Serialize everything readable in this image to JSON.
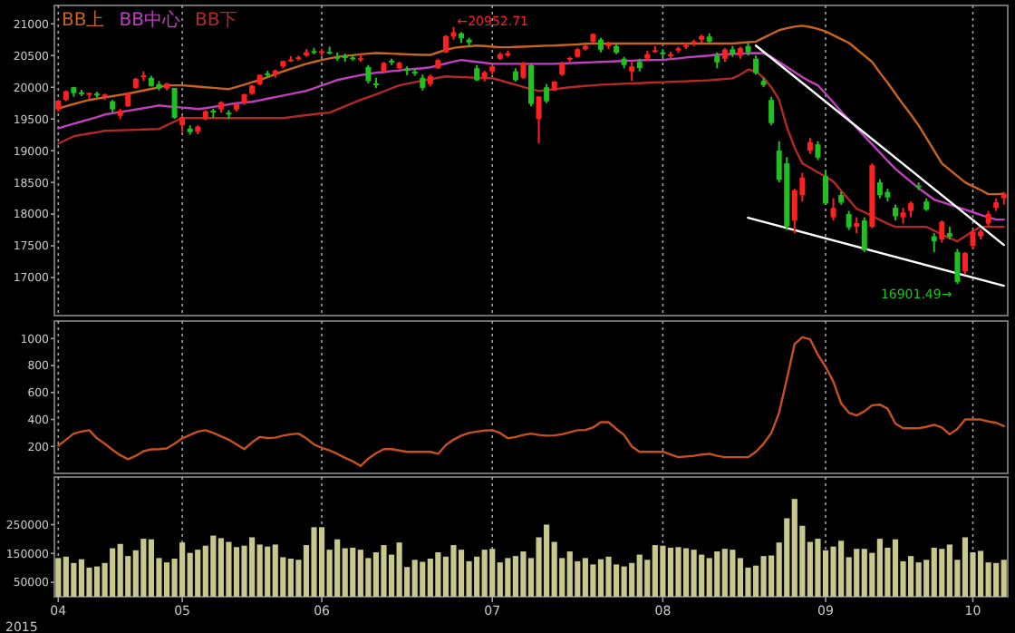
{
  "chart_data": [
    {
      "type": "candlestick",
      "categories": [
        "04",
        null,
        null,
        null,
        null,
        null,
        null,
        null,
        null,
        null,
        null,
        null,
        null,
        null,
        null,
        null,
        "05",
        null,
        null,
        null,
        null,
        null,
        null,
        null,
        null,
        null,
        null,
        null,
        null,
        null,
        null,
        null,
        null,
        null,
        "06",
        null,
        null,
        null,
        null,
        null,
        null,
        null,
        null,
        null,
        null,
        null,
        null,
        null,
        null,
        null,
        null,
        null,
        null,
        null,
        null,
        null,
        "07",
        null,
        null,
        null,
        null,
        null,
        null,
        null,
        null,
        null,
        null,
        null,
        null,
        null,
        null,
        null,
        null,
        null,
        null,
        null,
        null,
        null,
        "08",
        null,
        null,
        null,
        null,
        null,
        null,
        null,
        null,
        null,
        null,
        null,
        null,
        null,
        null,
        null,
        null,
        null,
        null,
        null,
        null,
        "09",
        null,
        null,
        null,
        null,
        null,
        null,
        null,
        null,
        null,
        null,
        null,
        null,
        null,
        null,
        null,
        null,
        null,
        null,
        "10",
        null,
        null,
        null,
        null
      ],
      "ohlc": [
        [
          19650,
          19800,
          19620,
          19790
        ],
        [
          19800,
          19950,
          19780,
          19937
        ],
        [
          20000,
          20006,
          19850,
          19907
        ],
        [
          19920,
          19960,
          19860,
          19905
        ],
        [
          19880,
          19920,
          19820,
          19908
        ],
        [
          19900,
          19930,
          19840,
          19870
        ],
        [
          19850,
          19900,
          19800,
          19885
        ],
        [
          19780,
          19800,
          19600,
          19652
        ],
        [
          19550,
          19660,
          19500,
          19634
        ],
        [
          19700,
          19910,
          19690,
          19909
        ],
        [
          19990,
          20150,
          19980,
          20133
        ],
        [
          20160,
          20250,
          20100,
          20187
        ],
        [
          20150,
          20180,
          20010,
          20020
        ],
        [
          20050,
          20100,
          19950,
          19983
        ],
        [
          19980,
          20070,
          19950,
          20058
        ],
        [
          19990,
          19990,
          19500,
          19520
        ],
        [
          19400,
          19550,
          19300,
          19531
        ],
        [
          19350,
          19400,
          19250,
          19292
        ],
        [
          19300,
          19400,
          19260,
          19379
        ],
        [
          19500,
          19640,
          19480,
          19620
        ],
        [
          19630,
          19660,
          19520,
          19624
        ],
        [
          19650,
          19780,
          19600,
          19764
        ],
        [
          19600,
          19640,
          19500,
          19570
        ],
        [
          19650,
          19760,
          19620,
          19732
        ],
        [
          19750,
          19900,
          19720,
          19890
        ],
        [
          19900,
          20040,
          19880,
          20026
        ],
        [
          20050,
          20200,
          20030,
          20196
        ],
        [
          20220,
          20260,
          20150,
          20202
        ],
        [
          20200,
          20280,
          20150,
          20264
        ],
        [
          20330,
          20420,
          20300,
          20413
        ],
        [
          20420,
          20490,
          20400,
          20437
        ],
        [
          20450,
          20500,
          20420,
          20473
        ],
        [
          20500,
          20600,
          20480,
          20551
        ],
        [
          20570,
          20620,
          20520,
          20563
        ],
        [
          20550,
          20600,
          20500,
          20569
        ],
        [
          20560,
          20640,
          20520,
          20543
        ],
        [
          20480,
          20550,
          20420,
          20473
        ],
        [
          20490,
          20530,
          20400,
          20488
        ],
        [
          20470,
          20520,
          20420,
          20460
        ],
        [
          20450,
          20520,
          20400,
          20457
        ],
        [
          20320,
          20350,
          20060,
          20096
        ],
        [
          20060,
          20150,
          19990,
          20046
        ],
        [
          20250,
          20400,
          20240,
          20382
        ],
        [
          20420,
          20450,
          20350,
          20407
        ],
        [
          20300,
          20400,
          20280,
          20387
        ],
        [
          20300,
          20330,
          20190,
          20257
        ],
        [
          20250,
          20300,
          20180,
          20219
        ],
        [
          20150,
          20200,
          19950,
          19990
        ],
        [
          20050,
          20200,
          20020,
          20174
        ],
        [
          20300,
          20450,
          20290,
          20428
        ],
        [
          20550,
          20820,
          20540,
          20809
        ],
        [
          20800,
          20952.71,
          20750,
          20868
        ],
        [
          20850,
          20870,
          20700,
          20771
        ],
        [
          20750,
          20780,
          20650,
          20706
        ],
        [
          20300,
          20350,
          20100,
          20109
        ],
        [
          20150,
          20260,
          20090,
          20235
        ],
        [
          20250,
          20350,
          20200,
          20329
        ],
        [
          20450,
          20550,
          20430,
          20522
        ],
        [
          20500,
          20580,
          20480,
          20539
        ],
        [
          20250,
          20300,
          20090,
          20112
        ],
        [
          20150,
          20400,
          20130,
          20376
        ],
        [
          20350,
          20360,
          19700,
          19737
        ],
        [
          19500,
          19860,
          19115,
          19855
        ],
        [
          20000,
          20050,
          19750,
          19779
        ],
        [
          19950,
          20100,
          19940,
          20089
        ],
        [
          20200,
          20400,
          20180,
          20385
        ],
        [
          20450,
          20480,
          20400,
          20463
        ],
        [
          20480,
          20620,
          20470,
          20600
        ],
        [
          20600,
          20680,
          20580,
          20650
        ],
        [
          20720,
          20850,
          20700,
          20841
        ],
        [
          20750,
          20780,
          20550,
          20593
        ],
        [
          20650,
          20720,
          20600,
          20683
        ],
        [
          20650,
          20680,
          20520,
          20544
        ],
        [
          20450,
          20480,
          20300,
          20350
        ],
        [
          20250,
          20400,
          20100,
          20328
        ],
        [
          20400,
          20450,
          20250,
          20302
        ],
        [
          20450,
          20580,
          20420,
          20522
        ],
        [
          20560,
          20650,
          20540,
          20585
        ],
        [
          20550,
          20600,
          20480,
          20548
        ],
        [
          20500,
          20560,
          20440,
          20520
        ],
        [
          20580,
          20640,
          20540,
          20614
        ],
        [
          20650,
          20700,
          20600,
          20664
        ],
        [
          20700,
          20750,
          20650,
          20724
        ],
        [
          20750,
          20830,
          20700,
          20808
        ],
        [
          20800,
          20850,
          20700,
          20720
        ],
        [
          20500,
          20550,
          20300,
          20392
        ],
        [
          20450,
          20620,
          20400,
          20595
        ],
        [
          20600,
          20650,
          20480,
          20519
        ],
        [
          20500,
          20640,
          20450,
          20620
        ],
        [
          20650,
          20700,
          20500,
          20554
        ],
        [
          20450,
          20500,
          20200,
          20222
        ],
        [
          20100,
          20150,
          20000,
          20033
        ],
        [
          19800,
          19850,
          19400,
          19435
        ],
        [
          19000,
          19150,
          18500,
          18540
        ],
        [
          18800,
          18900,
          17750,
          17806
        ],
        [
          17900,
          18400,
          17700,
          18376
        ],
        [
          18300,
          18650,
          18200,
          18574
        ],
        [
          19000,
          19200,
          18950,
          19136
        ],
        [
          19100,
          19150,
          18850,
          18890
        ],
        [
          18600,
          18700,
          18150,
          18165
        ],
        [
          17950,
          18250,
          17900,
          18095
        ],
        [
          18300,
          18350,
          18150,
          18182
        ],
        [
          18000,
          18050,
          17750,
          17792
        ],
        [
          17800,
          17950,
          17700,
          17860
        ],
        [
          17900,
          17950,
          17400,
          17427
        ],
        [
          17800,
          18800,
          17780,
          18770
        ],
        [
          18500,
          18550,
          18250,
          18299
        ],
        [
          18350,
          18400,
          18200,
          18264
        ],
        [
          18100,
          18150,
          17900,
          17965
        ],
        [
          17950,
          18100,
          17850,
          18026
        ],
        [
          18050,
          18200,
          17950,
          18171
        ],
        [
          18450,
          18500,
          18380,
          18432
        ],
        [
          18200,
          18250,
          18050,
          18070
        ],
        [
          17650,
          17700,
          17400,
          17571
        ],
        [
          17600,
          17900,
          17550,
          17880
        ],
        [
          17700,
          17800,
          17600,
          17645
        ],
        [
          17400,
          17450,
          16901.49,
          16930
        ],
        [
          17100,
          17400,
          17050,
          17388
        ],
        [
          17500,
          17750,
          17450,
          17722
        ],
        [
          17650,
          17760,
          17600,
          17725
        ],
        [
          17850,
          18050,
          17800,
          18005
        ],
        [
          18100,
          18250,
          18050,
          18186
        ],
        [
          18250,
          18350,
          18150,
          18322
        ]
      ],
      "colors": [
        "#ff2020",
        "#ff2020",
        "#20c020",
        "#20c020",
        "#ff2020",
        "#20c020",
        "#ff2020",
        "#20c020",
        "#ff2020",
        "#ff2020",
        "#ff2020",
        "#ff2020",
        "#20c020",
        "#20c020",
        "#ff2020",
        "#20c020",
        "#ff2020",
        "#20c020",
        "#ff2020",
        "#ff2020",
        "#20c020",
        "#ff2020",
        "#20c020",
        "#ff2020",
        "#ff2020",
        "#ff2020",
        "#ff2020",
        "#20c020",
        "#ff2020",
        "#ff2020",
        "#ff2020",
        "#ff2020",
        "#ff2020",
        "#20c020",
        "#ff2020",
        "#20c020",
        "#20c020",
        "#20c020",
        "#20c020",
        "#ff2020",
        "#20c020",
        "#20c020",
        "#ff2020",
        "#20c020",
        "#ff2020",
        "#20c020",
        "#20c020",
        "#20c020",
        "#ff2020",
        "#ff2020",
        "#ff2020",
        "#ff2020",
        "#20c020",
        "#20c020",
        "#20c020",
        "#ff2020",
        "#ff2020",
        "#ff2020",
        "#ff2020",
        "#20c020",
        "#ff2020",
        "#20c020",
        "#ff2020",
        "#20c020",
        "#ff2020",
        "#ff2020",
        "#ff2020",
        "#ff2020",
        "#ff2020",
        "#ff2020",
        "#20c020",
        "#ff2020",
        "#20c020",
        "#20c020",
        "#ff2020",
        "#20c020",
        "#ff2020",
        "#ff2020",
        "#20c020",
        "#ff2020",
        "#ff2020",
        "#ff2020",
        "#ff2020",
        "#ff2020",
        "#20c020",
        "#20c020",
        "#ff2020",
        "#20c020",
        "#ff2020",
        "#20c020",
        "#20c020",
        "#20c020",
        "#20c020",
        "#20c020",
        "#20c020",
        "#ff2020",
        "#ff2020",
        "#ff2020",
        "#20c020",
        "#20c020",
        "#ff2020",
        "#20c020",
        "#20c020",
        "#ff2020",
        "#20c020",
        "#ff2020",
        "#20c020",
        "#20c020",
        "#20c020",
        "#ff2020",
        "#ff2020",
        "#20c020",
        "#20c020",
        "#20c020",
        "#ff2020",
        "#20c020",
        "#20c020",
        "#ff2020",
        "#ff2020",
        "#ff2020",
        "#ff2020",
        "#ff2020",
        "#ff2020"
      ],
      "series": [
        {
          "type": "line",
          "name": "BB上",
          "color": "#c8641e",
          "values": [
            19665,
            19700,
            19735,
            19770,
            19800,
            19820,
            19840,
            19860,
            19880,
            19900,
            19925,
            19950,
            19975,
            20000,
            20030,
            20030,
            20030,
            20020,
            20010,
            20000,
            19990,
            19980,
            19970,
            20005,
            20040,
            20080,
            20114,
            20160,
            20205,
            20250,
            20290,
            20330,
            20370,
            20400,
            20430,
            20455,
            20480,
            20495,
            20505,
            20520,
            20530,
            20540,
            20535,
            20530,
            20525,
            20520,
            20515,
            20510,
            20510,
            20550,
            20590,
            20620,
            20635,
            20645,
            20657,
            20650,
            20640,
            20630,
            20630,
            20635,
            20640,
            20645,
            20650,
            20655,
            20657,
            20665,
            20670,
            20675,
            20685,
            20690,
            20690,
            20690,
            20690,
            20690,
            20690,
            20690,
            20690,
            20690,
            20690,
            20690,
            20690,
            20690,
            20690,
            20690,
            20690,
            20690,
            20690,
            20690,
            20700,
            20710,
            20720,
            20780,
            20840,
            20900,
            20930,
            20955,
            20970,
            20950,
            20920,
            20880,
            20820,
            20760,
            20700,
            20600,
            20500,
            20400,
            20230,
            20070,
            19900,
            19730,
            19570,
            19400,
            19200,
            19000,
            18800,
            18700,
            18600,
            18500,
            18440,
            18380,
            18314,
            18314,
            18320
          ]
        },
        {
          "type": "line",
          "name": "BB中心",
          "color": "#c040c0",
          "values": [
            19350,
            19390,
            19425,
            19460,
            19495,
            19530,
            19570,
            19590,
            19610,
            19630,
            19650,
            19670,
            19690,
            19714,
            19700,
            19690,
            19680,
            19670,
            19657,
            19670,
            19690,
            19710,
            19730,
            19750,
            19760,
            19771,
            19795,
            19820,
            19845,
            19870,
            19895,
            19920,
            19943,
            19985,
            20030,
            20070,
            20114,
            20140,
            20165,
            20190,
            20210,
            20230,
            20240,
            20255,
            20265,
            20280,
            20290,
            20300,
            20314,
            20345,
            20375,
            20405,
            20430,
            20415,
            20400,
            20385,
            20370,
            20370,
            20370,
            20370,
            20370,
            20370,
            20370,
            20370,
            20370,
            20375,
            20380,
            20385,
            20390,
            20395,
            20400,
            20405,
            20410,
            20415,
            20420,
            20425,
            20428,
            20430,
            20430,
            20445,
            20455,
            20470,
            20480,
            20490,
            20500,
            20514,
            20520,
            20525,
            20530,
            20535,
            20540,
            20535,
            20480,
            20400,
            20320,
            20240,
            20160,
            20090,
            20030,
            19900,
            19760,
            19620,
            19490,
            19360,
            19230,
            19100,
            18970,
            18840,
            18714,
            18610,
            18510,
            18410,
            18320,
            18230,
            18190,
            18150,
            18110,
            18070,
            18030,
            17990,
            17950,
            17914,
            17914
          ]
        },
        {
          "type": "line",
          "name": "BB下",
          "color": "#b42828",
          "values": [
            19110,
            19170,
            19228,
            19250,
            19270,
            19290,
            19314,
            19318,
            19322,
            19326,
            19330,
            19334,
            19338,
            19343,
            19400,
            19460,
            19514,
            19514,
            19514,
            19514,
            19514,
            19514,
            19514,
            19514,
            19514,
            19514,
            19514,
            19514,
            19514,
            19514,
            19530,
            19545,
            19560,
            19575,
            19590,
            19600,
            19650,
            19700,
            19750,
            19800,
            19845,
            19886,
            19935,
            19985,
            20030,
            20055,
            20080,
            20105,
            20125,
            20150,
            20171,
            20165,
            20160,
            20155,
            20150,
            20145,
            20143,
            20110,
            20075,
            20040,
            20005,
            19970,
            19943,
            19955,
            19970,
            19985,
            20000,
            20010,
            20020,
            20030,
            20040,
            20045,
            20050,
            20057,
            20060,
            20065,
            20070,
            20075,
            20080,
            20085,
            20090,
            20095,
            20100,
            20105,
            20110,
            20120,
            20130,
            20140,
            20200,
            20280,
            20250,
            20150,
            20000,
            19800,
            19371,
            19050,
            18800,
            18730,
            18660,
            18590,
            18514,
            18370,
            18230,
            18085,
            18030,
            17970,
            17910,
            17850,
            17800,
            17800,
            17800,
            17800,
            17800,
            17740,
            17680,
            17620,
            17571,
            17650,
            17730,
            17800,
            17800,
            17800,
            17800
          ]
        },
        {
          "type": "line",
          "color": "#ffffff",
          "values": [
            null,
            null,
            null,
            null,
            null,
            null,
            null,
            null,
            null,
            null,
            null,
            null,
            null,
            null,
            null,
            null,
            null,
            null,
            null,
            null,
            null,
            null,
            null,
            null,
            null,
            null,
            null,
            null,
            null,
            null,
            null,
            null,
            null,
            null,
            null,
            null,
            null,
            null,
            null,
            null,
            null,
            null,
            null,
            null,
            null,
            null,
            null,
            null,
            null,
            null,
            null,
            null,
            null,
            null,
            null,
            null,
            null,
            null,
            null,
            null,
            null,
            null,
            null,
            null,
            null,
            null,
            null,
            null,
            null,
            null,
            null,
            null,
            null,
            null,
            null,
            null,
            null,
            null,
            null,
            null,
            null,
            null,
            null,
            null,
            null,
            null,
            null,
            null,
            null,
            null,
            20657,
            null,
            null,
            null,
            null,
            null,
            null,
            null,
            null,
            null,
            null,
            null,
            null,
            null,
            null,
            null,
            null,
            null,
            null,
            null,
            null,
            null,
            null,
            null,
            null,
            null,
            null,
            null,
            null,
            null,
            null,
            null,
            17514
          ]
        },
        {
          "type": "line",
          "color": "#ffffff",
          "values": [
            null,
            null,
            null,
            null,
            null,
            null,
            null,
            null,
            null,
            null,
            null,
            null,
            null,
            null,
            null,
            null,
            null,
            null,
            null,
            null,
            null,
            null,
            null,
            null,
            null,
            null,
            null,
            null,
            null,
            null,
            null,
            null,
            null,
            null,
            null,
            null,
            null,
            null,
            null,
            null,
            null,
            null,
            null,
            null,
            null,
            null,
            null,
            null,
            null,
            null,
            null,
            null,
            null,
            null,
            null,
            null,
            null,
            null,
            null,
            null,
            null,
            null,
            null,
            null,
            null,
            null,
            null,
            null,
            null,
            null,
            null,
            null,
            null,
            null,
            null,
            null,
            null,
            null,
            null,
            null,
            null,
            null,
            null,
            null,
            null,
            null,
            null,
            null,
            null,
            17943,
            null,
            null,
            null,
            null,
            null,
            null,
            null,
            null,
            null,
            null,
            null,
            null,
            null,
            null,
            null,
            null,
            null,
            null,
            null,
            null,
            null,
            null,
            null,
            null,
            null,
            null,
            null,
            null,
            null,
            null,
            null,
            null,
            16871
          ]
        }
      ],
      "ylim": [
        16400,
        21290
      ],
      "yticks": [
        17000,
        17500,
        18000,
        18500,
        19000,
        19500,
        20000,
        20500,
        21000
      ],
      "grid": "x",
      "tick_labels": "y",
      "legend": "top left",
      "annotations": [
        "←20952.71",
        "16901.49→"
      ]
    },
    {
      "type": "line",
      "categories": [
        "04",
        null,
        null,
        null,
        null,
        null,
        null,
        null,
        null,
        null,
        null,
        null,
        null,
        null,
        null,
        null,
        "05",
        null,
        null,
        null,
        null,
        null,
        null,
        null,
        null,
        null,
        null,
        null,
        null,
        null,
        null,
        null,
        null,
        null,
        "06",
        null,
        null,
        null,
        null,
        null,
        null,
        null,
        null,
        null,
        null,
        null,
        null,
        null,
        null,
        null,
        null,
        null,
        null,
        null,
        null,
        null,
        "07",
        null,
        null,
        null,
        null,
        null,
        null,
        null,
        null,
        null,
        null,
        null,
        null,
        null,
        null,
        null,
        null,
        null,
        null,
        null,
        null,
        null,
        "08",
        null,
        null,
        null,
        null,
        null,
        null,
        null,
        null,
        null,
        null,
        null,
        null,
        null,
        null,
        null,
        null,
        null,
        null,
        null,
        null,
        "09",
        null,
        null,
        null,
        null,
        null,
        null,
        null,
        null,
        null,
        null,
        null,
        null,
        null,
        null,
        null,
        null,
        null,
        null,
        "10",
        null,
        null,
        null,
        null
      ],
      "series": [
        {
          "color": "#c8501e",
          "values": [
            205,
            250,
            295,
            310,
            320,
            260,
            220,
            175,
            135,
            105,
            130,
            165,
            178,
            180,
            185,
            220,
            260,
            285,
            310,
            320,
            300,
            275,
            250,
            215,
            180,
            230,
            270,
            262,
            265,
            280,
            290,
            295,
            260,
            215,
            190,
            170,
            145,
            115,
            90,
            55,
            110,
            150,
            180,
            180,
            170,
            160,
            160,
            160,
            160,
            145,
            210,
            250,
            280,
            300,
            310,
            318,
            320,
            300,
            260,
            270,
            285,
            295,
            285,
            280,
            282,
            290,
            305,
            320,
            322,
            340,
            380,
            380,
            330,
            285,
            200,
            160,
            160,
            160,
            160,
            140,
            120,
            125,
            130,
            140,
            145,
            130,
            120,
            120,
            120,
            120,
            160,
            220,
            300,
            450,
            700,
            960,
            1010,
            995,
            880,
            790,
            680,
            520,
            450,
            430,
            460,
            505,
            510,
            480,
            370,
            335,
            335,
            335,
            345,
            360,
            340,
            290,
            330,
            400,
            400,
            400,
            385,
            375,
            350
          ]
        }
      ],
      "ylim": [
        0,
        1130
      ],
      "yticks": [
        200,
        400,
        600,
        800,
        1000
      ],
      "grid": "x",
      "tick_labels": "y"
    },
    {
      "type": "bar",
      "categories": [
        "04",
        null,
        null,
        null,
        null,
        null,
        null,
        null,
        null,
        null,
        null,
        null,
        null,
        null,
        null,
        null,
        "05",
        null,
        null,
        null,
        null,
        null,
        null,
        null,
        null,
        null,
        null,
        null,
        null,
        null,
        null,
        null,
        null,
        null,
        "06",
        null,
        null,
        null,
        null,
        null,
        null,
        null,
        null,
        null,
        null,
        null,
        null,
        null,
        null,
        null,
        null,
        null,
        null,
        null,
        null,
        null,
        "07",
        null,
        null,
        null,
        null,
        null,
        null,
        null,
        null,
        null,
        null,
        null,
        null,
        null,
        null,
        null,
        null,
        null,
        null,
        null,
        null,
        null,
        "08",
        null,
        null,
        null,
        null,
        null,
        null,
        null,
        null,
        null,
        null,
        null,
        null,
        null,
        null,
        null,
        null,
        null,
        null,
        null,
        null,
        "09",
        null,
        null,
        null,
        null,
        null,
        null,
        null,
        null,
        null,
        null,
        null,
        null,
        null,
        null,
        null,
        null,
        null,
        null,
        "10",
        null,
        null,
        null,
        null
      ],
      "values": [
        134000,
        139000,
        117000,
        130000,
        101000,
        105000,
        117000,
        168000,
        183000,
        141000,
        161000,
        201000,
        199000,
        134000,
        119000,
        132000,
        188000,
        152000,
        163000,
        177000,
        212000,
        203000,
        190000,
        172000,
        177000,
        206000,
        181000,
        174000,
        181000,
        137000,
        132000,
        128000,
        179000,
        241000,
        241000,
        163000,
        199000,
        168000,
        170000,
        163000,
        134000,
        154000,
        179000,
        146000,
        188000,
        103000,
        128000,
        121000,
        132000,
        154000,
        139000,
        179000,
        163000,
        123000,
        139000,
        163000,
        166000,
        119000,
        134000,
        141000,
        157000,
        134000,
        206000,
        250000,
        190000,
        134000,
        157000,
        123000,
        134000,
        112000,
        130000,
        139000,
        112000,
        105000,
        117000,
        146000,
        128000,
        179000,
        177000,
        170000,
        172000,
        168000,
        163000,
        146000,
        134000,
        157000,
        166000,
        163000,
        134000,
        101000,
        108000,
        141000,
        143000,
        188000,
        272000,
        339000,
        246000,
        190000,
        201000,
        161000,
        174000,
        194000,
        137000,
        166000,
        166000,
        152000,
        201000,
        170000,
        199000,
        123000,
        141000,
        119000,
        128000,
        170000,
        166000,
        181000,
        128000,
        206000,
        154000,
        159000,
        119000,
        117000,
        128000
      ],
      "color": "#c8c88c",
      "ylim": [
        0,
        415000
      ],
      "yticks": [
        50000,
        150000,
        250000
      ],
      "grid": "x",
      "annotations": [
        "2015"
      ]
    }
  ]
}
